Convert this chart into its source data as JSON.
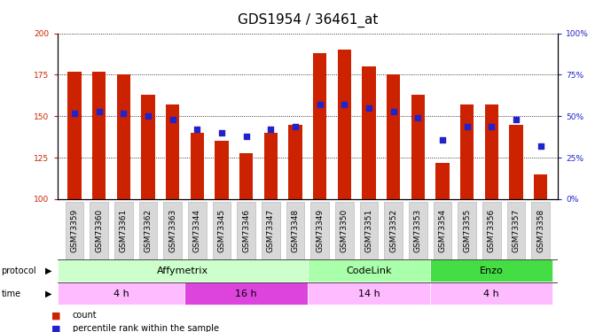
{
  "title": "GDS1954 / 36461_at",
  "samples": [
    "GSM73359",
    "GSM73360",
    "GSM73361",
    "GSM73362",
    "GSM73363",
    "GSM73344",
    "GSM73345",
    "GSM73346",
    "GSM73347",
    "GSM73348",
    "GSM73349",
    "GSM73350",
    "GSM73351",
    "GSM73352",
    "GSM73353",
    "GSM73354",
    "GSM73355",
    "GSM73356",
    "GSM73357",
    "GSM73358"
  ],
  "count": [
    177,
    177,
    175,
    163,
    157,
    140,
    135,
    128,
    140,
    145,
    188,
    190,
    180,
    175,
    163,
    122,
    157,
    157,
    145,
    115
  ],
  "percentile": [
    52,
    53,
    52,
    50,
    48,
    42,
    40,
    38,
    42,
    44,
    57,
    57,
    55,
    53,
    49,
    36,
    44,
    44,
    48,
    32
  ],
  "ymin": 100,
  "ymax": 200,
  "yright_min": 0,
  "yright_max": 100,
  "yticks_left": [
    100,
    125,
    150,
    175,
    200
  ],
  "yticks_right": [
    0,
    25,
    50,
    75,
    100
  ],
  "protocol_groups": [
    {
      "label": "Affymetrix",
      "start": 0,
      "end": 10,
      "color": "#ccffcc"
    },
    {
      "label": "CodeLink",
      "start": 10,
      "end": 15,
      "color": "#aaffaa"
    },
    {
      "label": "Enzo",
      "start": 15,
      "end": 20,
      "color": "#44dd44"
    }
  ],
  "time_groups": [
    {
      "label": "4 h",
      "start": 0,
      "end": 5,
      "color": "#ffbbff"
    },
    {
      "label": "16 h",
      "start": 5,
      "end": 10,
      "color": "#dd44dd"
    },
    {
      "label": "14 h",
      "start": 10,
      "end": 15,
      "color": "#ffbbff"
    },
    {
      "label": "4 h",
      "start": 15,
      "end": 20,
      "color": "#ffbbff"
    }
  ],
  "bar_color": "#cc2200",
  "dot_color": "#2222cc",
  "bar_width": 0.55,
  "title_fontsize": 11,
  "tick_fontsize": 6.5,
  "annotation_fontsize": 8
}
